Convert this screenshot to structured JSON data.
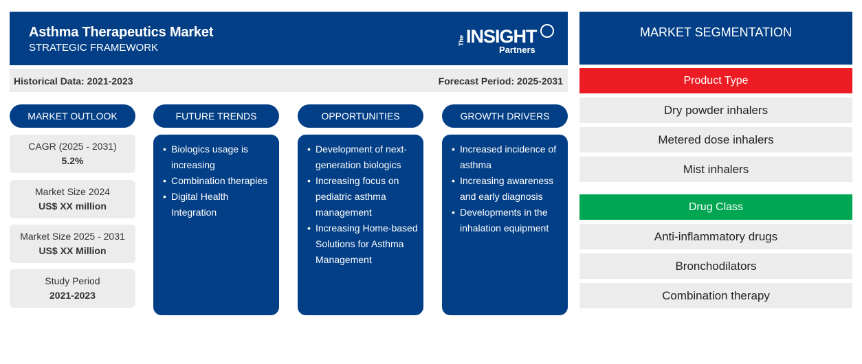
{
  "header": {
    "title": "Asthma Therapeutics Market",
    "subtitle": "STRATEGIC FRAMEWORK",
    "logo": {
      "the": "The",
      "insight": "INSIGHT",
      "partners": "Partners"
    }
  },
  "period": {
    "historical": "Historical Data: 2021-2023",
    "forecast": "Forecast Period: 2025-2031"
  },
  "columns": {
    "outlook": "MARKET OUTLOOK",
    "trends": "FUTURE TRENDS",
    "opportunities": "OPPORTUNITIES",
    "drivers": "GROWTH DRIVERS"
  },
  "outlook": [
    {
      "label": "CAGR (2025 - 2031)",
      "value": "5.2%"
    },
    {
      "label": "Market Size 2024",
      "value": "US$ XX million"
    },
    {
      "label": "Market Size 2025 - 2031",
      "value": "US$ XX Million"
    },
    {
      "label": "Study Period",
      "value": "2021-2023"
    }
  ],
  "trends": [
    "Biologics usage is increasing",
    "Combination therapies",
    "Digital Health Integration"
  ],
  "opportunities": [
    "Development of next-generation biologics",
    "Increasing focus on pediatric asthma management",
    "Increasing Home-based Solutions for Asthma Management"
  ],
  "drivers": [
    "Increased incidence of asthma",
    "Increasing awareness and early diagnosis",
    "Developments in the inhalation equipment"
  ],
  "segmentation": {
    "title": "MARKET SEGMENTATION",
    "product_type": {
      "label": "Product Type",
      "color": "#ed1c24",
      "items": [
        "Dry powder inhalers",
        "Metered dose inhalers",
        "Mist inhalers"
      ]
    },
    "drug_class": {
      "label": "Drug Class",
      "color": "#00a651",
      "items": [
        "Anti-inflammatory drugs",
        "Bronchodilators",
        "Combination therapy"
      ]
    }
  },
  "colors": {
    "navy": "#033f86",
    "light_gray": "#ececec"
  }
}
